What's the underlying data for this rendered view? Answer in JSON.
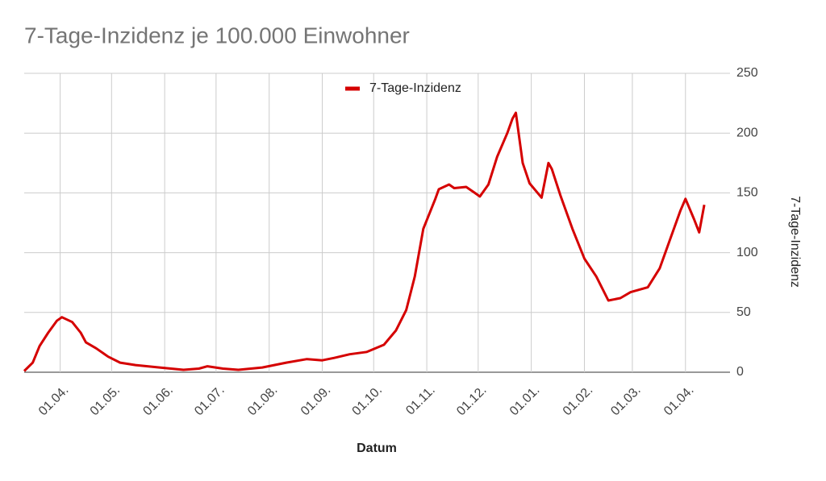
{
  "chart_data": {
    "type": "line",
    "title": "7-Tage-Inzidenz je 100.000 Einwohner",
    "x_label": "Datum",
    "y_label": "7-Tage-Inzidenz",
    "x": [
      -21,
      -16,
      -12,
      -7,
      -2,
      1,
      7,
      12,
      15,
      21,
      28,
      35,
      44,
      58,
      72,
      81,
      86,
      95,
      104,
      118,
      132,
      144,
      153,
      160,
      169,
      179,
      189,
      196,
      202,
      207,
      212,
      219,
      221,
      227,
      230,
      237,
      242,
      245,
      250,
      255,
      261,
      264,
      266,
      270,
      274,
      281,
      285,
      287,
      292,
      299,
      306,
      313,
      320,
      327,
      333,
      343,
      350,
      357,
      362,
      365,
      370,
      373,
      376
    ],
    "series": [
      {
        "name": "7-Tage-Inzidenz",
        "color": "#d50000",
        "values": [
          1,
          8,
          22,
          33,
          43,
          46,
          42,
          33,
          25,
          20,
          13,
          8,
          6,
          4,
          2,
          3,
          5,
          3,
          2,
          4,
          8,
          11,
          10,
          12,
          15,
          17,
          23,
          35,
          52,
          80,
          120,
          145,
          153,
          157,
          154,
          155,
          150,
          147,
          157,
          180,
          200,
          212,
          217,
          175,
          158,
          146,
          175,
          170,
          148,
          120,
          95,
          80,
          60,
          62,
          67,
          71,
          87,
          115,
          135,
          145,
          128,
          117,
          140
        ]
      }
    ],
    "xlim": [
      -21,
      391
    ],
    "xticks": [
      {
        "value": 0,
        "label": "01.04."
      },
      {
        "value": 30,
        "label": "01.05."
      },
      {
        "value": 61,
        "label": "01.06."
      },
      {
        "value": 91,
        "label": "01.07."
      },
      {
        "value": 122,
        "label": "01.08."
      },
      {
        "value": 153,
        "label": "01.09."
      },
      {
        "value": 183,
        "label": "01.10."
      },
      {
        "value": 214,
        "label": "01.11."
      },
      {
        "value": 244,
        "label": "01.12."
      },
      {
        "value": 275,
        "label": "01.01."
      },
      {
        "value": 306,
        "label": "01.02."
      },
      {
        "value": 334,
        "label": "01.03."
      },
      {
        "value": 365,
        "label": "01.04."
      }
    ],
    "ylim": [
      0,
      250
    ],
    "yticks": [
      0,
      50,
      100,
      150,
      200,
      250
    ],
    "grid": true,
    "legend": "top"
  }
}
